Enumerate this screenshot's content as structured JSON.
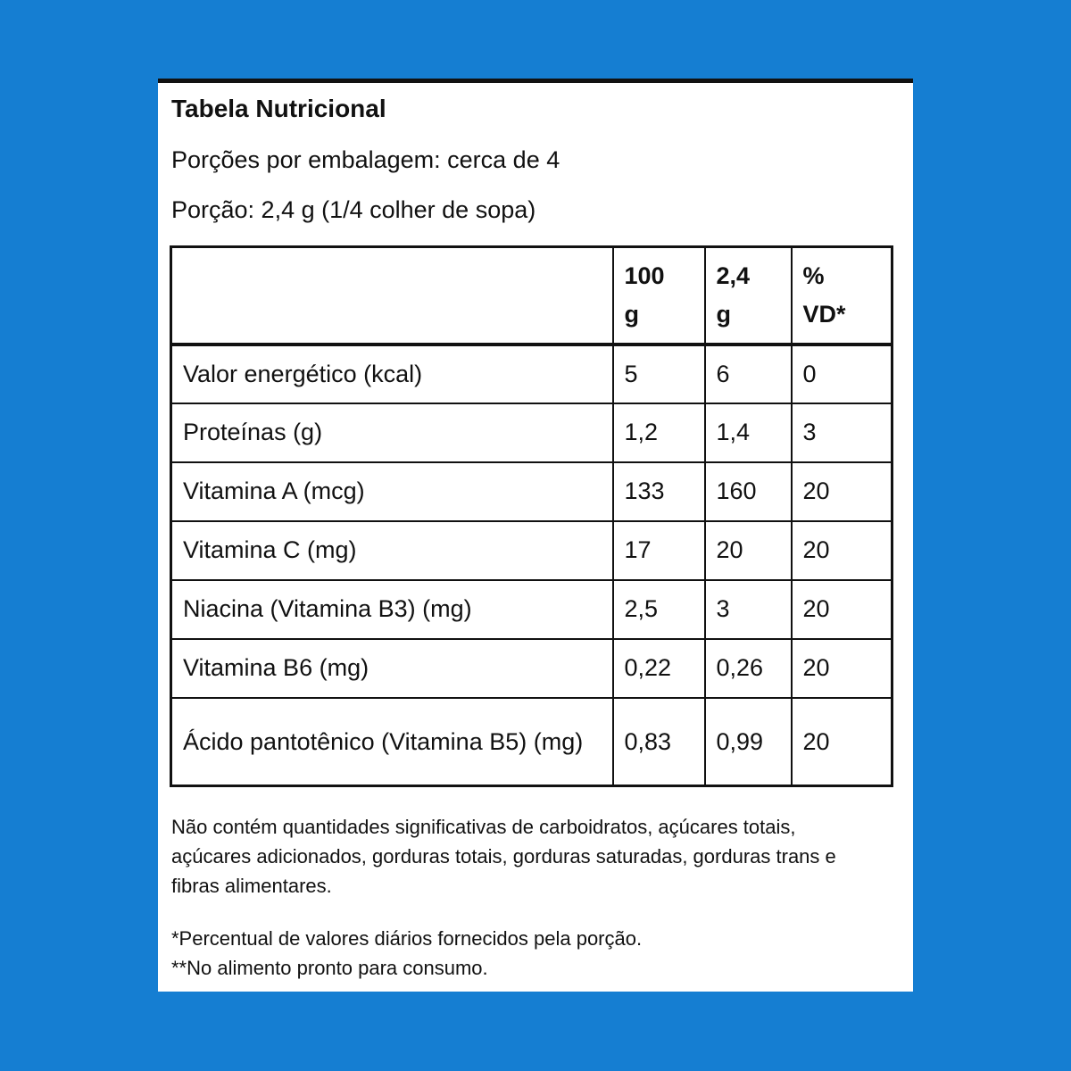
{
  "page": {
    "background_color": "#157ED2",
    "card_background": "#FFFFFF",
    "border_color": "#111111"
  },
  "header": {
    "title": "Tabela Nutricional",
    "servings_line": "Porções por embalagem: cerca de 4",
    "portion_line": "Porção: 2,4 g (1/4 colher de sopa)"
  },
  "table": {
    "columns": [
      {
        "label": "",
        "line1": "",
        "line2": ""
      },
      {
        "label": "100 g",
        "line1": "100",
        "line2": "g"
      },
      {
        "label": "2,4 g",
        "line1": "2,4",
        "line2": "g"
      },
      {
        "label": "% VD*",
        "line1": "%",
        "line2": "VD*"
      }
    ],
    "rows": [
      {
        "label": "Valor energético (kcal)",
        "per_100g": "5",
        "per_portion": "6",
        "vd": "0"
      },
      {
        "label": "Proteínas (g)",
        "per_100g": "1,2",
        "per_portion": "1,4",
        "vd": "3"
      },
      {
        "label": "Vitamina A (mcg)",
        "per_100g": "133",
        "per_portion": "160",
        "vd": "20"
      },
      {
        "label": "Vitamina C (mg)",
        "per_100g": "17",
        "per_portion": "20",
        "vd": "20"
      },
      {
        "label": "Niacina (Vitamina B3) (mg)",
        "per_100g": "2,5",
        "per_portion": "3",
        "vd": "20"
      },
      {
        "label": "Vitamina B6 (mg)",
        "per_100g": "0,22",
        "per_portion": "0,26",
        "vd": "20"
      },
      {
        "label": "Ácido pantotênico (Vitamina B5) (mg)",
        "per_100g": "0,83",
        "per_portion": "0,99",
        "vd": "20"
      }
    ]
  },
  "footnotes": {
    "no_significant_amounts": "Não contém quantidades significativas de carboidratos, açúcares totais, açúcares adicionados, gorduras totais, gorduras saturadas, gorduras trans e fibras alimentares.",
    "daily_values": "*Percentual de valores diários fornecidos pela porção.",
    "ready_to_eat": "**No alimento pronto para consumo."
  }
}
